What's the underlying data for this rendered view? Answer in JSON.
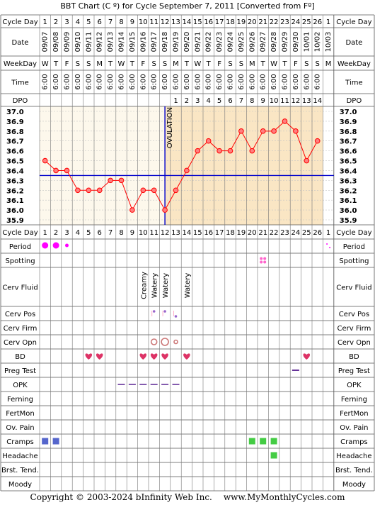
{
  "title": "BBT Chart (C º) for Cycle September 7, 2011  [Converted from Fº]",
  "copyright": {
    "text": "Copyright © 2003-2024 bInfinity Web Inc.",
    "site": "www.MyMonthlyCycles.com"
  },
  "row_labels": {
    "cycle_day": "Cycle Day",
    "date": "Date",
    "weekday": "WeekDay",
    "time": "Time",
    "dpo": "DPO",
    "period": "Period",
    "spotting": "Spotting",
    "cerv_fluid": "Cerv Fluid",
    "cerv_pos": "Cerv Pos",
    "cerv_firm": "Cerv Firm",
    "cerv_opn": "Cerv Opn",
    "bd": "BD",
    "preg_test": "Preg Test",
    "opk": "OPK",
    "ferning": "Ferning",
    "fertmon": "FertMon",
    "ov_pain": "Ov. Pain",
    "cramps": "Cramps",
    "headache": "Headache",
    "brst_tend": "Brst. Tend.",
    "moody": "Moody"
  },
  "days": [
    "1",
    "2",
    "3",
    "4",
    "5",
    "6",
    "7",
    "8",
    "9",
    "10",
    "11",
    "12",
    "13",
    "14",
    "15",
    "16",
    "17",
    "18",
    "19",
    "20",
    "21",
    "22",
    "23",
    "24",
    "25",
    "26",
    "1"
  ],
  "dates": [
    "09/07",
    "09/08",
    "09/09",
    "09/10",
    "09/11",
    "09/12",
    "09/13",
    "09/14",
    "09/15",
    "09/16",
    "09/17",
    "09/18",
    "09/19",
    "09/20",
    "09/21",
    "09/22",
    "09/23",
    "09/24",
    "09/25",
    "09/26",
    "09/27",
    "09/28",
    "09/29",
    "09/30",
    "10/01",
    "10/02",
    "10/03"
  ],
  "weekdays": [
    "W",
    "T",
    "F",
    "S",
    "S",
    "M",
    "T",
    "W",
    "T",
    "F",
    "S",
    "S",
    "M",
    "T",
    "W",
    "T",
    "F",
    "S",
    "S",
    "M",
    "T",
    "W",
    "T",
    "F",
    "S",
    "S",
    "M"
  ],
  "times": [
    "6:00",
    "6:00",
    "6:00",
    "6:00",
    "6:00",
    "6:00",
    "6:00",
    "6:00",
    "6:00",
    "6:00",
    "6:00",
    "6:00",
    "6:00",
    "6:00",
    "6:00",
    "6:00",
    "6:00",
    "6:00",
    "6:00",
    "6:00",
    "6:00",
    "6:00",
    "6:00",
    "6:00",
    "6:00",
    "6:00",
    ""
  ],
  "dpo": [
    "",
    "",
    "",
    "",
    "",
    "",
    "",
    "",
    "",
    "",
    "",
    "",
    "1",
    "2",
    "3",
    "4",
    "5",
    "6",
    "7",
    "8",
    "9",
    "10",
    "11",
    "12",
    "13",
    "14",
    ""
  ],
  "cerv_fluid": [
    "",
    "",
    "",
    "",
    "",
    "",
    "",
    "",
    "",
    "Creamy",
    "Watery",
    "Watery",
    "",
    "Watery",
    "",
    "",
    "",
    "",
    "",
    "",
    "",
    "",
    "",
    "",
    "",
    "",
    ""
  ],
  "chart_data": {
    "type": "line",
    "x": [
      1,
      2,
      3,
      4,
      5,
      6,
      7,
      8,
      9,
      10,
      11,
      12,
      13,
      14,
      15,
      16,
      17,
      18,
      19,
      20,
      21,
      22,
      23,
      24,
      25,
      26
    ],
    "values": [
      36.5,
      36.4,
      36.4,
      36.2,
      36.2,
      36.2,
      36.3,
      36.3,
      36.0,
      36.2,
      36.2,
      36.0,
      36.2,
      36.4,
      36.6,
      36.7,
      36.6,
      36.6,
      36.8,
      36.6,
      36.8,
      36.8,
      36.9,
      36.8,
      36.5,
      36.7
    ],
    "y_ticks": [
      "37.0",
      "36.9",
      "36.8",
      "36.7",
      "36.6",
      "36.5",
      "36.4",
      "36.3",
      "36.2",
      "36.1",
      "36.0",
      "35.9"
    ],
    "ylim": [
      35.9,
      37.0
    ],
    "coverline": 36.35,
    "ovulation_day": 12,
    "ovulation_label": "OVULATION",
    "colors": {
      "line": "#ff0000",
      "marker_fill": "#ff7f7f",
      "coverline": "#0000cc",
      "ovulation": "#0000cc",
      "pre_bg": "#fdf8ec",
      "post_bg": "#fae6c4",
      "grid": "#c4c4c4"
    }
  },
  "markers": {
    "period": [
      {
        "day": 1,
        "size": "large",
        "color": "#ff00ff"
      },
      {
        "day": 2,
        "size": "large",
        "color": "#ff00ff"
      },
      {
        "day": 3,
        "size": "small",
        "color": "#ff00ff"
      },
      {
        "day": 27,
        "size": "tiny",
        "color": "#ff00ff"
      }
    ],
    "spotting": [
      {
        "day": 21,
        "color": "#ff66cc"
      }
    ],
    "cerv_pos": [
      {
        "day": 11
      },
      {
        "day": 12
      },
      {
        "day": 13
      }
    ],
    "cerv_opn": [
      {
        "day": 11,
        "size": "medium"
      },
      {
        "day": 12,
        "size": "large"
      },
      {
        "day": 13,
        "size": "small"
      }
    ],
    "bd": [
      5,
      6,
      10,
      11,
      12,
      14,
      25
    ],
    "preg_test": [
      24
    ],
    "opk": [
      8,
      9,
      10,
      11,
      12,
      13
    ],
    "cramps": [
      {
        "day": 1,
        "color": "#5566cc"
      },
      {
        "day": 2,
        "color": "#5566cc"
      },
      {
        "day": 20,
        "color": "#44cc44"
      },
      {
        "day": 21,
        "color": "#44cc44"
      },
      {
        "day": 22,
        "color": "#44cc44"
      }
    ],
    "headache": [
      {
        "day": 22,
        "color": "#44cc44"
      }
    ]
  }
}
